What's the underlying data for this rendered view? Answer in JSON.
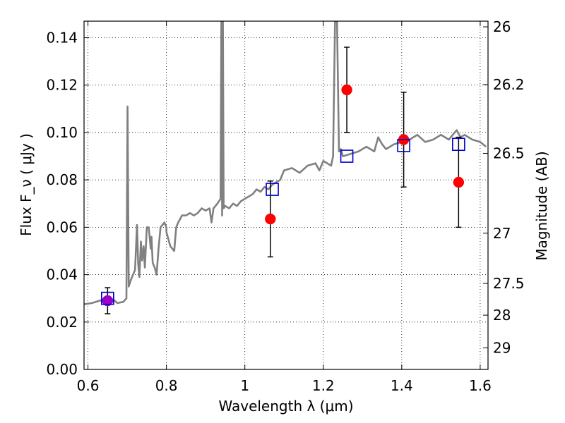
{
  "chart_data": {
    "type": "scatter",
    "xlabel": "Wavelength  λ (μm)",
    "ylabel": "Flux  F_ν  ( μJy )",
    "y2label": "Magnitude (AB)",
    "xlim": [
      0.59,
      1.62
    ],
    "ylim": [
      0.0,
      0.147
    ],
    "xticks": [
      0.6,
      0.8,
      1.0,
      1.2,
      1.4,
      1.6
    ],
    "xtick_labels": [
      "0.6",
      "0.8",
      "1",
      "1.2",
      "1.4",
      "1.6"
    ],
    "yticks": [
      0.0,
      0.02,
      0.04,
      0.06,
      0.08,
      0.1,
      0.12,
      0.14
    ],
    "ytick_labels": [
      "0.00",
      "0.02",
      "0.04",
      "0.06",
      "0.08",
      "0.10",
      "0.12",
      "0.14"
    ],
    "mag_ticks": [
      {
        "flux": 0.1446,
        "label": "26"
      },
      {
        "flux": 0.1202,
        "label": "26.2"
      },
      {
        "flux": 0.0912,
        "label": "26.5"
      },
      {
        "flux": 0.0575,
        "label": "27"
      },
      {
        "flux": 0.0363,
        "label": "27.5"
      },
      {
        "flux": 0.0229,
        "label": "28"
      },
      {
        "flux": 0.0091,
        "label": "29"
      }
    ],
    "grid": true,
    "colors": {
      "model": "#808080",
      "observed": "#ff0000",
      "synthetic": "#0000cc",
      "blend": "#9900cc"
    },
    "series": [
      {
        "kind": "line",
        "color": "#808080",
        "x": [
          0.59,
          0.61,
          0.63,
          0.65,
          0.665,
          0.675,
          0.69,
          0.698,
          0.701,
          0.704,
          0.71,
          0.72,
          0.725,
          0.728,
          0.731,
          0.735,
          0.738,
          0.742,
          0.745,
          0.75,
          0.755,
          0.76,
          0.762,
          0.765,
          0.77,
          0.775,
          0.78,
          0.785,
          0.79,
          0.795,
          0.8,
          0.8,
          0.81,
          0.82,
          0.825,
          0.83,
          0.84,
          0.85,
          0.86,
          0.87,
          0.88,
          0.89,
          0.9,
          0.91,
          0.915,
          0.92,
          0.93,
          0.938,
          0.94,
          0.942,
          0.944,
          0.946,
          0.95,
          0.96,
          0.97,
          0.98,
          0.99,
          1.0,
          1.01,
          1.02,
          1.03,
          1.04,
          1.05,
          1.06,
          1.07,
          1.08,
          1.09,
          1.1,
          1.12,
          1.14,
          1.16,
          1.18,
          1.19,
          1.2,
          1.21,
          1.22,
          1.225,
          1.23,
          1.235,
          1.24,
          1.245,
          1.25,
          1.27,
          1.29,
          1.31,
          1.33,
          1.34,
          1.35,
          1.36,
          1.38,
          1.4,
          1.42,
          1.44,
          1.46,
          1.48,
          1.5,
          1.52,
          1.54,
          1.55,
          1.56,
          1.58,
          1.6,
          1.615
        ],
        "y": [
          0.0275,
          0.028,
          0.029,
          0.03,
          0.0295,
          0.028,
          0.0285,
          0.03,
          0.111,
          0.035,
          0.038,
          0.042,
          0.061,
          0.045,
          0.039,
          0.054,
          0.046,
          0.052,
          0.043,
          0.06,
          0.06,
          0.051,
          0.056,
          0.045,
          0.043,
          0.04,
          0.051,
          0.06,
          0.061,
          0.062,
          0.06,
          0.058,
          0.052,
          0.05,
          0.06,
          0.062,
          0.065,
          0.065,
          0.066,
          0.065,
          0.066,
          0.068,
          0.067,
          0.068,
          0.062,
          0.068,
          0.07,
          0.072,
          0.147,
          0.065,
          0.147,
          0.068,
          0.069,
          0.068,
          0.07,
          0.069,
          0.071,
          0.072,
          0.073,
          0.074,
          0.076,
          0.075,
          0.077,
          0.076,
          0.078,
          0.079,
          0.08,
          0.084,
          0.085,
          0.083,
          0.086,
          0.087,
          0.084,
          0.088,
          0.087,
          0.086,
          0.09,
          0.147,
          0.147,
          0.092,
          0.093,
          0.09,
          0.091,
          0.092,
          0.094,
          0.092,
          0.098,
          0.095,
          0.093,
          0.095,
          0.096,
          0.097,
          0.099,
          0.096,
          0.097,
          0.099,
          0.097,
          0.101,
          0.098,
          0.099,
          0.097,
          0.096,
          0.094
        ]
      },
      {
        "kind": "points-errorbars",
        "marker": "filled-circle",
        "color": "#ff0000",
        "x": [
          0.65,
          1.065,
          1.26,
          1.405,
          1.545
        ],
        "y": [
          0.029,
          0.0635,
          0.118,
          0.097,
          0.079
        ],
        "yerr": [
          0.0055,
          0.016,
          0.018,
          0.02,
          0.019
        ]
      },
      {
        "kind": "points",
        "marker": "open-square",
        "color": "#0000cc",
        "x": [
          0.65,
          1.07,
          1.26,
          1.405,
          1.545
        ],
        "y": [
          0.03,
          0.076,
          0.09,
          0.0945,
          0.095
        ]
      }
    ]
  }
}
